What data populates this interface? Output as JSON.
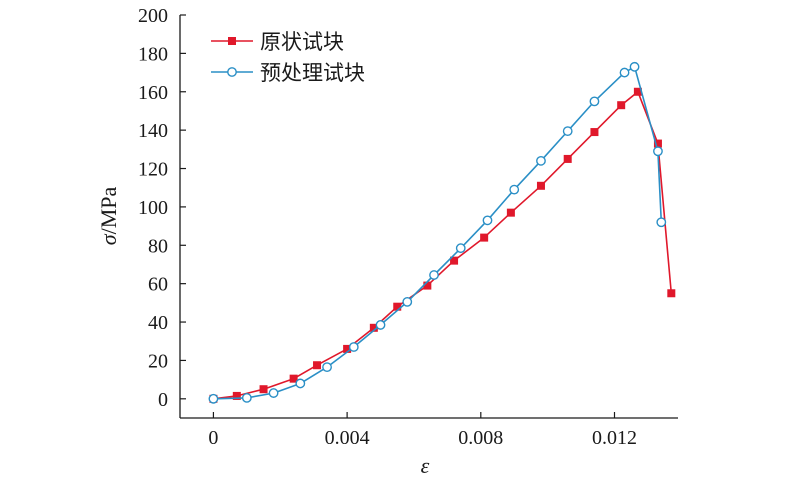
{
  "chart_data": {
    "type": "line",
    "xlabel": "ε",
    "ylabel_symbol": "σ",
    "ylabel_unit": "/MPa",
    "xlim": [
      -0.001,
      0.0139
    ],
    "ylim": [
      -10,
      200
    ],
    "xticks": [
      0,
      0.004,
      0.008,
      0.012
    ],
    "xtick_labels": [
      "0",
      "0.004",
      "0.008",
      "0.012"
    ],
    "yticks": [
      0,
      20,
      40,
      60,
      80,
      100,
      120,
      140,
      160,
      180,
      200
    ],
    "ytick_labels": [
      "0",
      "20",
      "40",
      "60",
      "80",
      "100",
      "120",
      "140",
      "160",
      "180",
      "200"
    ],
    "legend_position": "top-left",
    "series": [
      {
        "name": "原状试块",
        "color": "#e0182b",
        "marker": "filled-square",
        "points": [
          [
            0.0,
            0.0
          ],
          [
            0.0007,
            1.5
          ],
          [
            0.0015,
            5.0
          ],
          [
            0.0024,
            10.5
          ],
          [
            0.0031,
            17.5
          ],
          [
            0.004,
            26.0
          ],
          [
            0.0048,
            37.0
          ],
          [
            0.0055,
            48.0
          ],
          [
            0.0064,
            59.0
          ],
          [
            0.0072,
            72.0
          ],
          [
            0.0081,
            84.0
          ],
          [
            0.0089,
            97.0
          ],
          [
            0.0098,
            111.0
          ],
          [
            0.0106,
            125.0
          ],
          [
            0.0114,
            139.0
          ],
          [
            0.0122,
            153.0
          ],
          [
            0.0127,
            160.0
          ],
          [
            0.0133,
            133.0
          ],
          [
            0.0137,
            55.0
          ]
        ]
      },
      {
        "name": "预处理试块",
        "color": "#2a8fc6",
        "marker": "open-circle",
        "points": [
          [
            0.0,
            0.0
          ],
          [
            0.001,
            0.5
          ],
          [
            0.0018,
            3.0
          ],
          [
            0.0026,
            8.0
          ],
          [
            0.0034,
            16.5
          ],
          [
            0.0042,
            27.0
          ],
          [
            0.005,
            38.5
          ],
          [
            0.0058,
            50.5
          ],
          [
            0.0066,
            64.5
          ],
          [
            0.0074,
            78.5
          ],
          [
            0.0082,
            93.0
          ],
          [
            0.009,
            109.0
          ],
          [
            0.0098,
            124.0
          ],
          [
            0.0106,
            139.5
          ],
          [
            0.0114,
            155.0
          ],
          [
            0.0123,
            170.0
          ],
          [
            0.0126,
            173.0
          ],
          [
            0.0133,
            129.0
          ],
          [
            0.0134,
            92.0
          ]
        ]
      }
    ]
  }
}
